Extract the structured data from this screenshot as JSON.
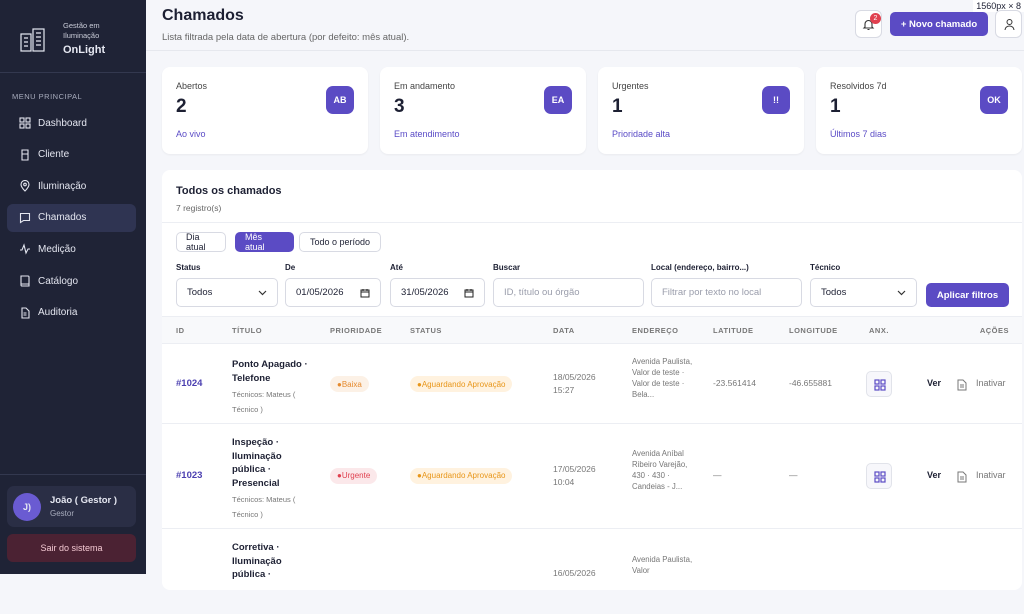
{
  "viewport_label": "1560px × 8",
  "sidebar": {
    "brand_subtitle": "Gestão em Iluminação",
    "brand_name": "OnLight",
    "menu_heading": "MENU PRINCIPAL",
    "nav": [
      "Dashboard",
      "Cliente",
      "Iluminação",
      "Chamados",
      "Medição",
      "Catálogo",
      "Auditoria"
    ],
    "user": {
      "initials": "J)",
      "name": "João ( Gestor )",
      "role": "Gestor"
    },
    "logout": "Sair do sistema"
  },
  "header": {
    "title": "Chamados",
    "subtitle": "Lista filtrada pela data de abertura (por defeito: mês atual).",
    "notification_count": "2",
    "new_button": "+ Novo chamado"
  },
  "cards": [
    {
      "label": "Abertos",
      "value": "2",
      "badge": "AB",
      "note": "Ao vivo"
    },
    {
      "label": "Em andamento",
      "value": "3",
      "badge": "EA",
      "note": "Em atendimento"
    },
    {
      "label": "Urgentes",
      "value": "1",
      "badge": "!!",
      "note": "Prioridade alta"
    },
    {
      "label": "Resolvidos 7d",
      "value": "1",
      "badge": "OK",
      "note": "Últimos 7 dias"
    }
  ],
  "panel": {
    "title": "Todos os chamados",
    "count": "7 registro(s)",
    "tabs": [
      "Dia atual",
      "Mês atual",
      "Todo o período"
    ],
    "filters": [
      {
        "label": "Status",
        "value": "Todos"
      },
      {
        "label": "De",
        "value": "01/05/2026"
      },
      {
        "label": "Até",
        "value": "31/05/2026"
      },
      {
        "label": "Buscar",
        "placeholder": "ID, título ou órgão"
      },
      {
        "label": "Local (endereço, bairro...)",
        "placeholder": "Filtrar por texto no local"
      },
      {
        "label": "Técnico",
        "value": "Todos"
      }
    ],
    "apply": "Aplicar filtros"
  },
  "table": {
    "columns": [
      "ID",
      "TÍTULO",
      "PRIORIDADE",
      "STATUS",
      "DATA",
      "ENDEREÇO",
      "LATITUDE",
      "LONGITUDE",
      "ANX.",
      "AÇÕES"
    ],
    "rows": [
      {
        "id": "#1024",
        "title": "Ponto Apagado · Telefone",
        "technicians": "Técnicos: Mateus ( Técnico )",
        "priority": "Baixa",
        "priority_color": "#e58a2e",
        "status": "Aguardando Aprovação",
        "date": "18/05/2026",
        "time": "15:27",
        "address": "Avenida Paulista, Valor de teste · Valor de teste · Bela...",
        "latitude": "-23.561414",
        "longitude": "-46.655881",
        "actions": [
          "Ver",
          "Inativar"
        ]
      },
      {
        "id": "#1023",
        "title": "Inspeção · Iluminação pública · Presencial",
        "technicians": "Técnicos: Mateus ( Técnico )",
        "priority": "Urgente",
        "priority_color": "#e0404f",
        "status": "Aguardando Aprovação",
        "date": "17/05/2026",
        "time": "10:04",
        "address": "Avenida Aníbal Ribeiro Varejão, 430 · 430 · Candeias - J...",
        "latitude": "—",
        "longitude": "—",
        "actions": [
          "Ver",
          "Inativar"
        ]
      },
      {
        "title": "Corretiva · Iluminação pública ·",
        "date": "16/05/2026",
        "address": "Avenida Paulista, Valor"
      }
    ]
  }
}
